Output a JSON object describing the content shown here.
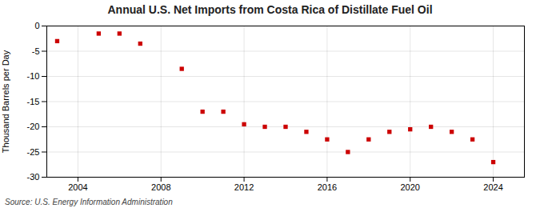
{
  "chart_data": {
    "type": "scatter",
    "title": "Annual U.S. Net Imports from Costa Rica of Distillate Fuel Oil",
    "ylabel": "Thousand Barrels per Day",
    "source": "Source: U.S. Energy Information Administration",
    "x": [
      2003,
      2005,
      2006,
      2007,
      2009,
      2010,
      2011,
      2012,
      2013,
      2014,
      2015,
      2016,
      2017,
      2018,
      2019,
      2020,
      2021,
      2022,
      2023,
      2024
    ],
    "values": [
      -3.0,
      -1.5,
      -1.5,
      -3.5,
      -8.5,
      -17.0,
      -17.0,
      -19.5,
      -20.0,
      -20.0,
      -21.0,
      -22.5,
      -25.0,
      -22.5,
      -21.0,
      -20.5,
      -20.0,
      -21.0,
      -22.5,
      -27.0
    ],
    "color": "#cc0000",
    "marker": "square",
    "xlim": [
      2002.5,
      2025.5
    ],
    "xticks": [
      2004,
      2008,
      2012,
      2016,
      2020,
      2024
    ],
    "ylim": [
      -30,
      0
    ],
    "yticks": [
      0,
      -5,
      -10,
      -15,
      -20,
      -25,
      -30
    ],
    "grid": true
  }
}
